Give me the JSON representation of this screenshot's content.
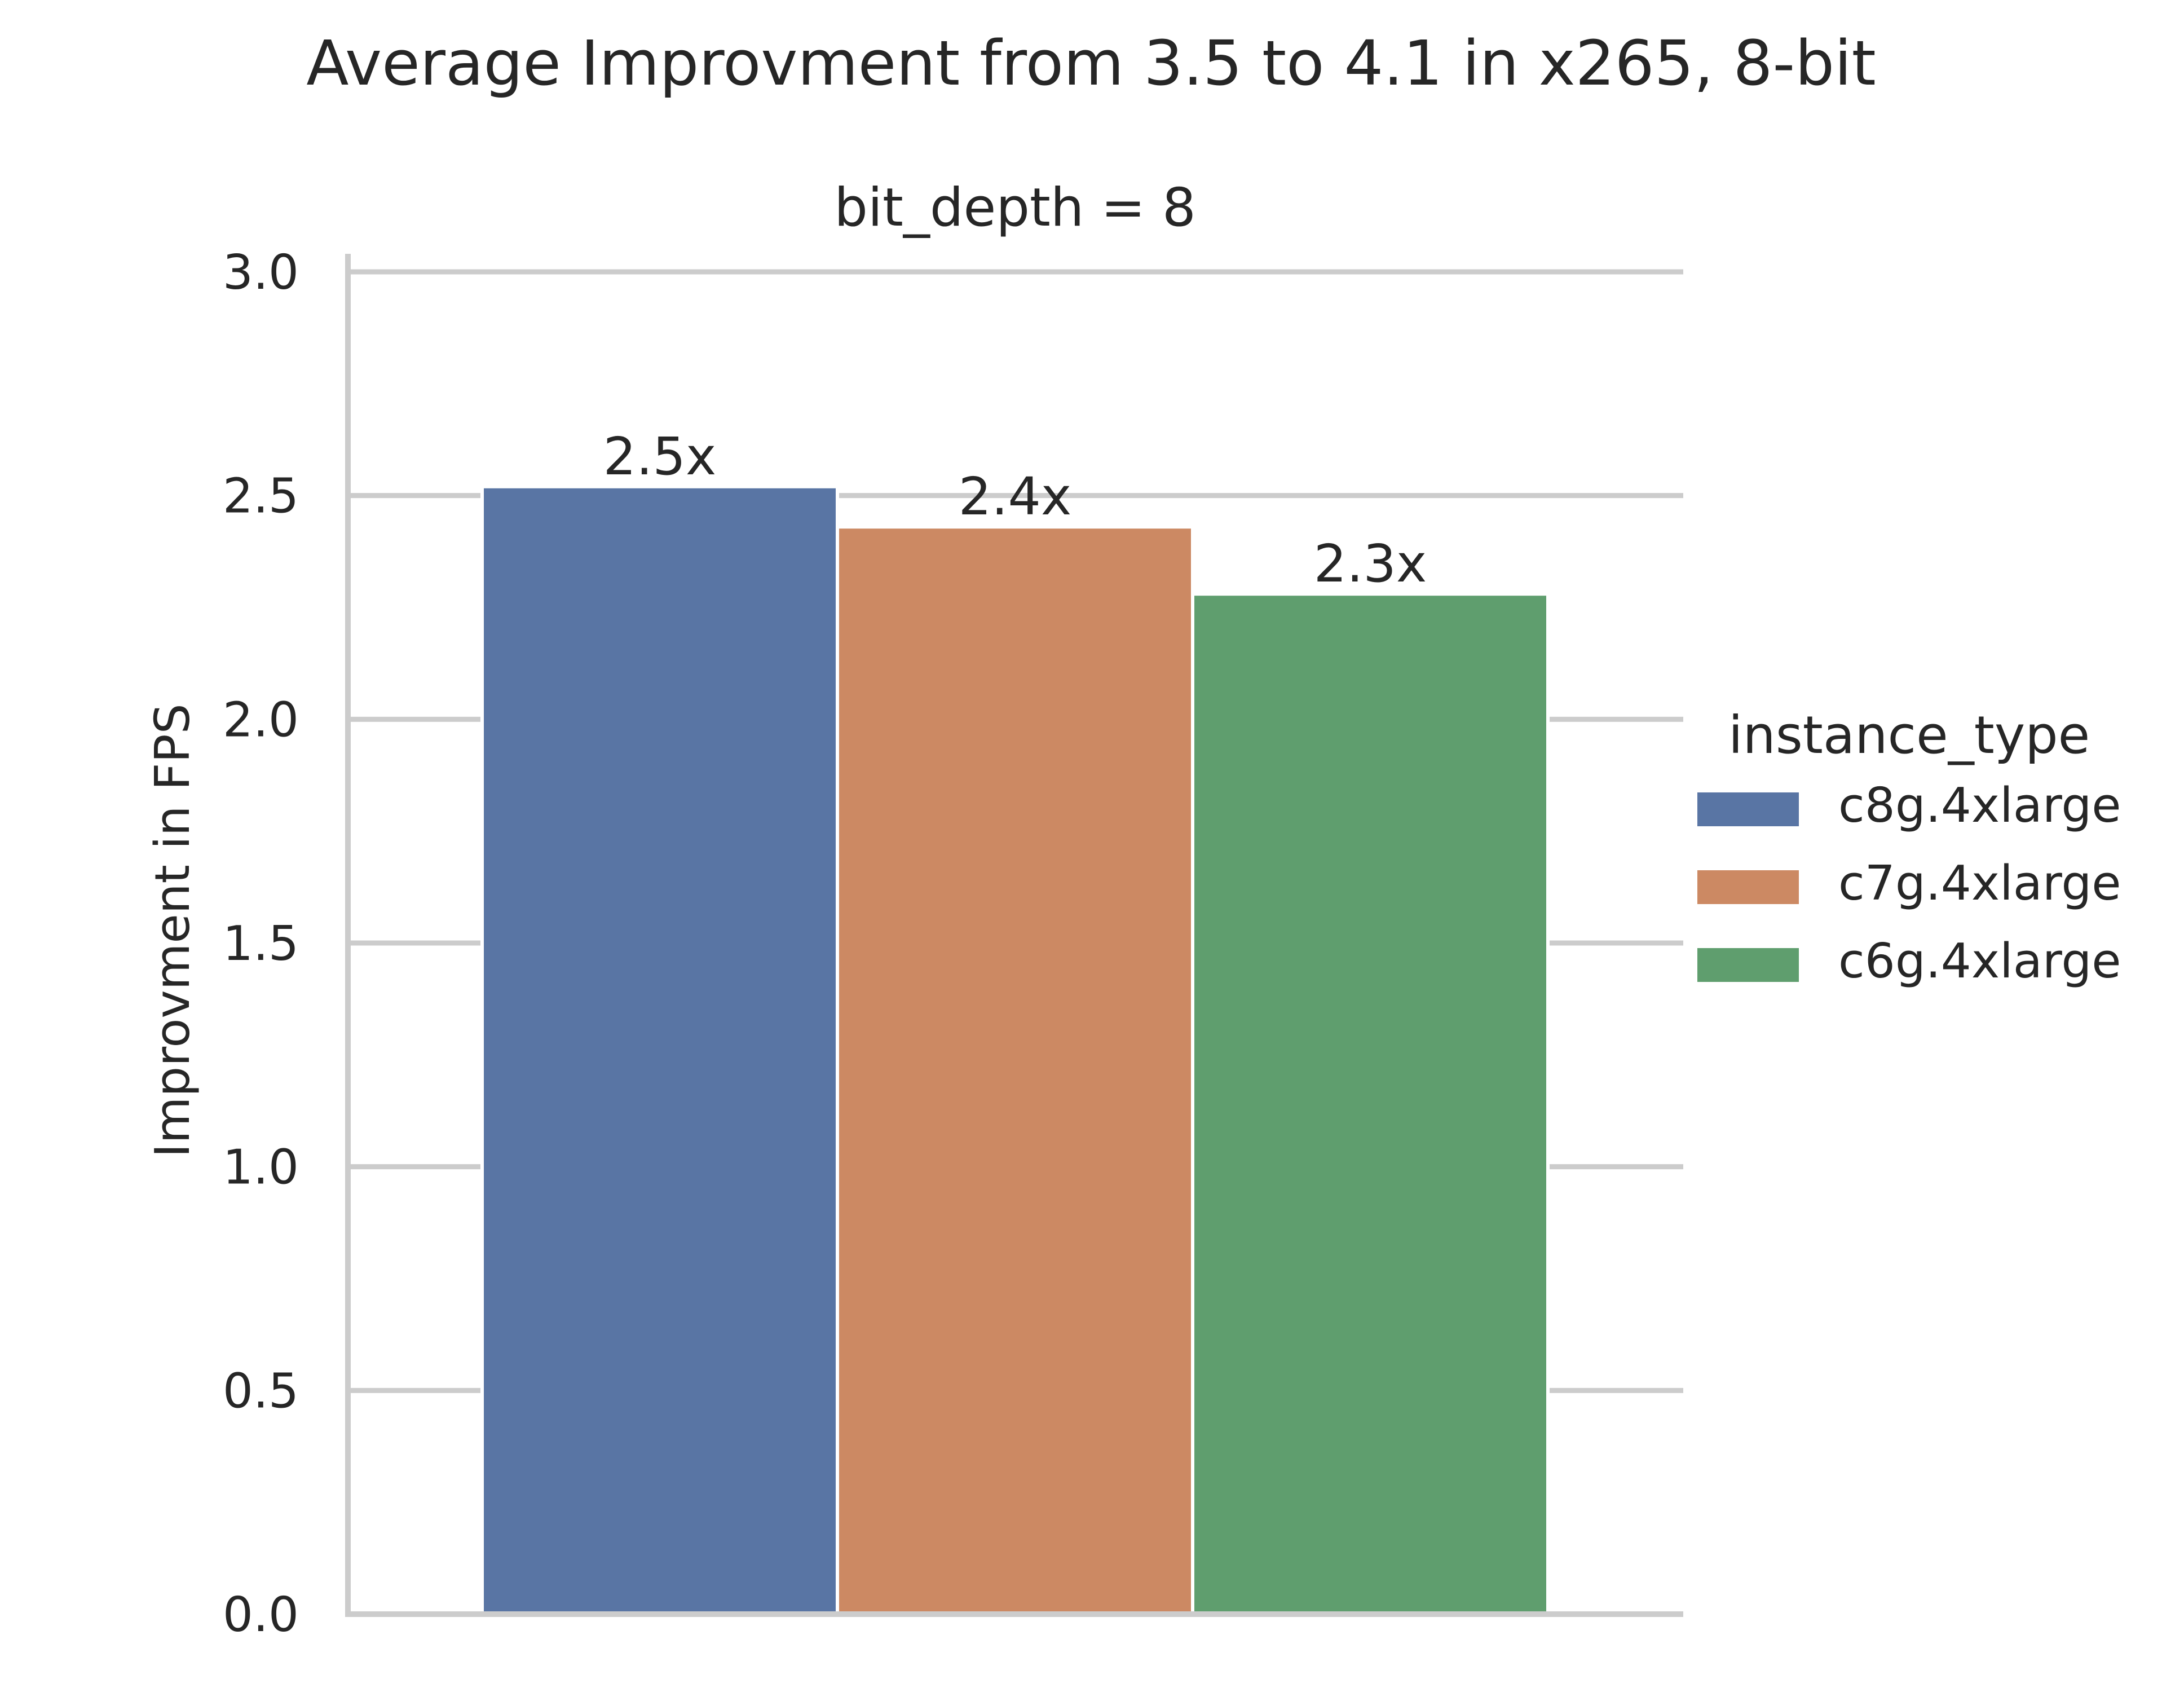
{
  "chart_data": {
    "type": "bar",
    "title": "Average Improvment from 3.5 to 4.1 in x265, 8-bit",
    "facet_title": "bit_depth = 8",
    "xlabel": "",
    "ylabel": "Improvment in FPS",
    "ylim": [
      0,
      3.0
    ],
    "yticks": [
      0.0,
      0.5,
      1.0,
      1.5,
      2.0,
      2.5,
      3.0
    ],
    "ytick_labels": [
      "0.0",
      "0.5",
      "1.0",
      "1.5",
      "2.0",
      "2.5",
      "3.0"
    ],
    "grid": true,
    "legend": {
      "title": "instance_type",
      "placement": "right"
    },
    "series": [
      {
        "name": "c8g.4xlarge",
        "value": 2.52,
        "label": "2.5x",
        "color": "#5975a4"
      },
      {
        "name": "c7g.4xlarge",
        "value": 2.43,
        "label": "2.4x",
        "color": "#cc8963"
      },
      {
        "name": "c6g.4xlarge",
        "value": 2.28,
        "label": "2.3x",
        "color": "#5f9e6e"
      }
    ]
  }
}
